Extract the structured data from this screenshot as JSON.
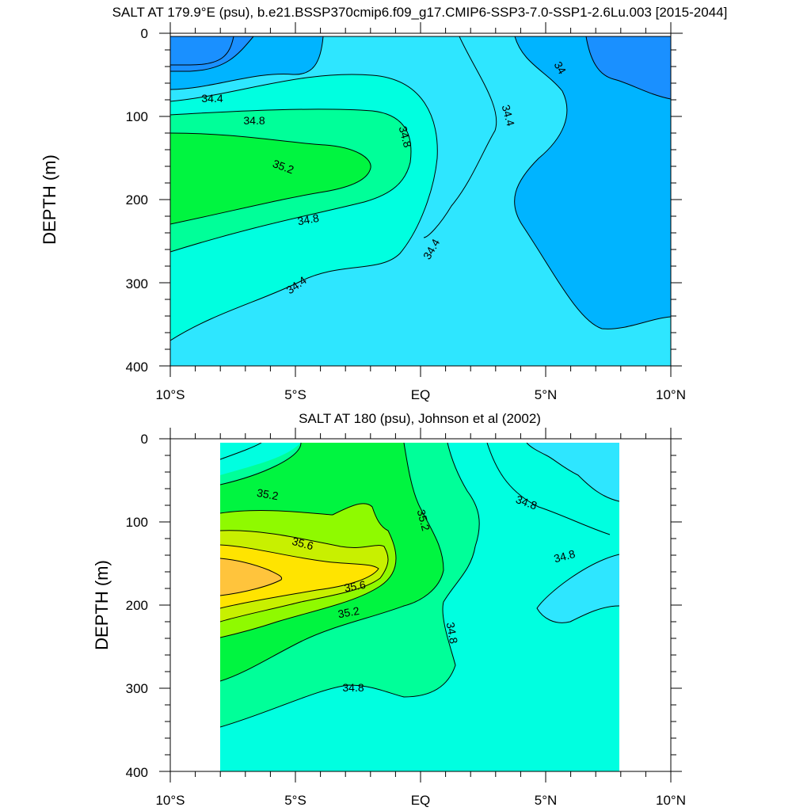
{
  "colors": {
    "c_33_6": "#1a90ff",
    "c_34_0": "#00b4ff",
    "c_34_2": "#2ee6ff",
    "c_34_6": "#00ffe0",
    "c_35_0": "#00ff99",
    "c_35_2": "#00f540",
    "c_35_4": "#8ffa00",
    "c_35_6": "#c8f000",
    "c_35_8": "#ffe400",
    "c_36_0": "#ffc43c",
    "line": "#000000"
  },
  "chart_data": [
    {
      "type": "contour",
      "title": "SALT AT 179.9°E (psu), b.e21.BSSP370cmip6.f09_g17.CMIP6-SSP3-7.0-SSP1-2.6Lu.003 [2015-2044]",
      "ylabel": "DEPTH (m)",
      "xlabel": "",
      "xlim": [
        -10,
        10
      ],
      "ylim": [
        400,
        0
      ],
      "y_inverted": true,
      "x_tick_labels": [
        "10°S",
        "5°S",
        "EQ",
        "5°N",
        "10°N"
      ],
      "y_tick_labels": [
        "0",
        "100",
        "200",
        "300",
        "400"
      ],
      "contour_labels": [
        "34",
        "34.4",
        "34.4",
        "34.4",
        "34.4",
        "34.8",
        "34.8",
        "34.8",
        "35.2"
      ],
      "value_range_psu": [
        33.6,
        35.4
      ],
      "features": [
        {
          "desc": "fresh surface core",
          "lat": [
            -10,
            -7
          ],
          "depth": [
            0,
            50
          ],
          "value": 33.8
        },
        {
          "desc": "fresh surface core",
          "lat": [
            6.5,
            10
          ],
          "depth": [
            0,
            60
          ],
          "value": 33.8
        },
        {
          "desc": "salinity maximum",
          "lat": [
            -10,
            -2
          ],
          "depth": [
            120,
            230
          ],
          "value": 35.2
        }
      ]
    },
    {
      "type": "contour",
      "title": "SALT AT 180 (psu), Johnson et al (2002)",
      "ylabel": "DEPTH (m)",
      "xlabel": "",
      "xlim": [
        -10,
        10
      ],
      "ylim": [
        400,
        0
      ],
      "y_inverted": true,
      "data_lat_range": [
        -8,
        8
      ],
      "x_tick_labels": [
        "10°S",
        "5°S",
        "EQ",
        "5°N",
        "10°N"
      ],
      "y_tick_labels": [
        "0",
        "100",
        "200",
        "300",
        "400"
      ],
      "contour_labels": [
        "35.2",
        "35.2",
        "35.2",
        "35.6",
        "35.6",
        "34.8",
        "34.8",
        "34.8",
        "34.8"
      ],
      "value_range_psu": [
        34.4,
        36.0
      ],
      "features": [
        {
          "desc": "salinity maximum",
          "lat": [
            -8,
            -5
          ],
          "depth": [
            110,
            190
          ],
          "value": 35.9
        },
        {
          "desc": "fresh surface water",
          "lat": [
            5,
            8
          ],
          "depth": [
            0,
            60
          ],
          "value": 34.6
        }
      ]
    }
  ]
}
